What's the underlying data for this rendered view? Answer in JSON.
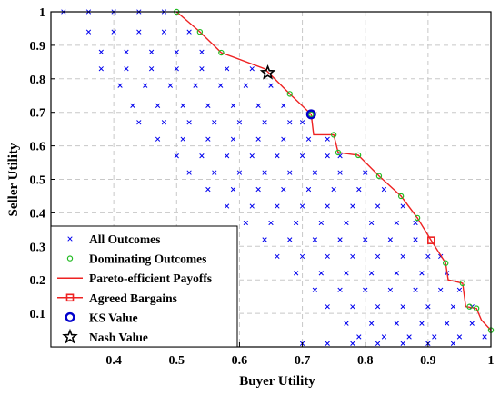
{
  "chart_data": {
    "type": "scatter",
    "xlabel": "Buyer Utility",
    "ylabel": "Seller Utility",
    "xlim": [
      0.3,
      1.0
    ],
    "ylim": [
      0.0,
      1.0
    ],
    "x_ticks": [
      "0.4",
      "0.5",
      "0.6",
      "0.7",
      "0.8",
      "0.9",
      "1"
    ],
    "x_tick_values": [
      0.4,
      0.5,
      0.6,
      0.7,
      0.8,
      0.9,
      1.0
    ],
    "y_ticks": [
      "0.1",
      "0.2",
      "0.3",
      "0.4",
      "0.5",
      "0.6",
      "0.7",
      "0.8",
      "0.9",
      "1"
    ],
    "y_tick_values": [
      0.1,
      0.2,
      0.3,
      0.4,
      0.5,
      0.6,
      0.7,
      0.8,
      0.9,
      1.0
    ],
    "grid": true,
    "legend_position": "bottom-left",
    "colors": {
      "all_outcomes": "#0000ee",
      "dominating": "#22bb22",
      "pareto": "#ee2222",
      "agreed": "#ee2222",
      "ks": "#0000cc",
      "nash": "#000000"
    },
    "series": [
      {
        "name": "All Outcomes",
        "marker": "x",
        "points": [
          [
            0.32,
            1.0
          ],
          [
            0.36,
            1.0
          ],
          [
            0.4,
            1.0
          ],
          [
            0.44,
            1.0
          ],
          [
            0.48,
            1.0
          ],
          [
            0.36,
            0.94
          ],
          [
            0.4,
            0.94
          ],
          [
            0.44,
            0.94
          ],
          [
            0.48,
            0.94
          ],
          [
            0.52,
            0.94
          ],
          [
            0.38,
            0.88
          ],
          [
            0.42,
            0.88
          ],
          [
            0.46,
            0.88
          ],
          [
            0.5,
            0.88
          ],
          [
            0.54,
            0.88
          ],
          [
            0.38,
            0.83
          ],
          [
            0.42,
            0.83
          ],
          [
            0.46,
            0.83
          ],
          [
            0.5,
            0.83
          ],
          [
            0.54,
            0.83
          ],
          [
            0.58,
            0.83
          ],
          [
            0.62,
            0.83
          ],
          [
            0.41,
            0.78
          ],
          [
            0.45,
            0.78
          ],
          [
            0.49,
            0.78
          ],
          [
            0.53,
            0.78
          ],
          [
            0.57,
            0.78
          ],
          [
            0.61,
            0.78
          ],
          [
            0.65,
            0.78
          ],
          [
            0.43,
            0.72
          ],
          [
            0.47,
            0.72
          ],
          [
            0.51,
            0.72
          ],
          [
            0.55,
            0.72
          ],
          [
            0.59,
            0.72
          ],
          [
            0.63,
            0.72
          ],
          [
            0.67,
            0.72
          ],
          [
            0.44,
            0.67
          ],
          [
            0.48,
            0.67
          ],
          [
            0.52,
            0.67
          ],
          [
            0.56,
            0.67
          ],
          [
            0.6,
            0.67
          ],
          [
            0.64,
            0.67
          ],
          [
            0.68,
            0.67
          ],
          [
            0.7,
            0.67
          ],
          [
            0.47,
            0.62
          ],
          [
            0.51,
            0.62
          ],
          [
            0.55,
            0.62
          ],
          [
            0.59,
            0.62
          ],
          [
            0.63,
            0.62
          ],
          [
            0.67,
            0.62
          ],
          [
            0.71,
            0.62
          ],
          [
            0.74,
            0.62
          ],
          [
            0.5,
            0.57
          ],
          [
            0.54,
            0.57
          ],
          [
            0.58,
            0.57
          ],
          [
            0.62,
            0.57
          ],
          [
            0.66,
            0.57
          ],
          [
            0.7,
            0.57
          ],
          [
            0.74,
            0.57
          ],
          [
            0.76,
            0.57
          ],
          [
            0.52,
            0.52
          ],
          [
            0.56,
            0.52
          ],
          [
            0.6,
            0.52
          ],
          [
            0.64,
            0.52
          ],
          [
            0.68,
            0.52
          ],
          [
            0.72,
            0.52
          ],
          [
            0.76,
            0.52
          ],
          [
            0.8,
            0.52
          ],
          [
            0.55,
            0.47
          ],
          [
            0.59,
            0.47
          ],
          [
            0.63,
            0.47
          ],
          [
            0.67,
            0.47
          ],
          [
            0.71,
            0.47
          ],
          [
            0.75,
            0.47
          ],
          [
            0.79,
            0.47
          ],
          [
            0.83,
            0.47
          ],
          [
            0.58,
            0.42
          ],
          [
            0.62,
            0.42
          ],
          [
            0.66,
            0.42
          ],
          [
            0.7,
            0.42
          ],
          [
            0.74,
            0.42
          ],
          [
            0.78,
            0.42
          ],
          [
            0.82,
            0.42
          ],
          [
            0.86,
            0.42
          ],
          [
            0.61,
            0.37
          ],
          [
            0.65,
            0.37
          ],
          [
            0.69,
            0.37
          ],
          [
            0.73,
            0.37
          ],
          [
            0.77,
            0.37
          ],
          [
            0.81,
            0.37
          ],
          [
            0.85,
            0.37
          ],
          [
            0.88,
            0.37
          ],
          [
            0.64,
            0.32
          ],
          [
            0.68,
            0.32
          ],
          [
            0.72,
            0.32
          ],
          [
            0.76,
            0.32
          ],
          [
            0.8,
            0.32
          ],
          [
            0.84,
            0.32
          ],
          [
            0.88,
            0.32
          ],
          [
            0.66,
            0.27
          ],
          [
            0.7,
            0.27
          ],
          [
            0.74,
            0.27
          ],
          [
            0.78,
            0.27
          ],
          [
            0.82,
            0.27
          ],
          [
            0.86,
            0.27
          ],
          [
            0.9,
            0.27
          ],
          [
            0.92,
            0.27
          ],
          [
            0.69,
            0.22
          ],
          [
            0.73,
            0.22
          ],
          [
            0.77,
            0.22
          ],
          [
            0.81,
            0.22
          ],
          [
            0.85,
            0.22
          ],
          [
            0.89,
            0.22
          ],
          [
            0.93,
            0.22
          ],
          [
            0.72,
            0.17
          ],
          [
            0.76,
            0.17
          ],
          [
            0.8,
            0.17
          ],
          [
            0.84,
            0.17
          ],
          [
            0.88,
            0.17
          ],
          [
            0.92,
            0.17
          ],
          [
            0.95,
            0.17
          ],
          [
            0.74,
            0.12
          ],
          [
            0.78,
            0.12
          ],
          [
            0.82,
            0.12
          ],
          [
            0.86,
            0.12
          ],
          [
            0.9,
            0.12
          ],
          [
            0.94,
            0.12
          ],
          [
            0.97,
            0.12
          ],
          [
            0.77,
            0.07
          ],
          [
            0.81,
            0.07
          ],
          [
            0.85,
            0.07
          ],
          [
            0.89,
            0.07
          ],
          [
            0.93,
            0.07
          ],
          [
            0.97,
            0.07
          ],
          [
            0.79,
            0.03
          ],
          [
            0.83,
            0.03
          ],
          [
            0.87,
            0.03
          ],
          [
            0.91,
            0.03
          ],
          [
            0.95,
            0.03
          ],
          [
            0.99,
            0.03
          ],
          [
            0.7,
            0.01
          ],
          [
            0.74,
            0.01
          ],
          [
            0.78,
            0.01
          ],
          [
            0.82,
            0.01
          ],
          [
            0.86,
            0.01
          ],
          [
            0.9,
            0.01
          ],
          [
            0.94,
            0.01
          ]
        ]
      },
      {
        "name": "Dominating Outcomes",
        "marker": "circle-open",
        "points": [
          [
            0.5,
            1.0
          ],
          [
            0.537,
            0.94
          ],
          [
            0.571,
            0.878
          ],
          [
            0.68,
            0.755
          ],
          [
            0.714,
            0.694
          ],
          [
            0.75,
            0.633
          ],
          [
            0.757,
            0.58
          ],
          [
            0.789,
            0.572
          ],
          [
            0.822,
            0.51
          ],
          [
            0.857,
            0.45
          ],
          [
            0.883,
            0.385
          ],
          [
            0.928,
            0.25
          ],
          [
            0.955,
            0.19
          ],
          [
            0.966,
            0.12
          ],
          [
            0.977,
            0.115
          ],
          [
            1.0,
            0.05
          ]
        ]
      },
      {
        "name": "Pareto-efficient Payoffs",
        "marker": "line",
        "points": [
          [
            0.5,
            1.0
          ],
          [
            0.537,
            0.94
          ],
          [
            0.571,
            0.878
          ],
          [
            0.64,
            0.83
          ],
          [
            0.68,
            0.755
          ],
          [
            0.714,
            0.694
          ],
          [
            0.718,
            0.633
          ],
          [
            0.75,
            0.633
          ],
          [
            0.757,
            0.58
          ],
          [
            0.789,
            0.572
          ],
          [
            0.822,
            0.51
          ],
          [
            0.857,
            0.45
          ],
          [
            0.883,
            0.385
          ],
          [
            0.905,
            0.318
          ],
          [
            0.928,
            0.25
          ],
          [
            0.932,
            0.2
          ],
          [
            0.955,
            0.19
          ],
          [
            0.96,
            0.12
          ],
          [
            0.977,
            0.115
          ],
          [
            0.985,
            0.08
          ],
          [
            1.0,
            0.05
          ]
        ]
      },
      {
        "name": "Agreed Bargains",
        "marker": "square-open",
        "points": [
          [
            0.905,
            0.318
          ]
        ]
      },
      {
        "name": "KS Value",
        "marker": "circle-bold",
        "points": [
          [
            0.714,
            0.694
          ]
        ]
      },
      {
        "name": "Nash Value",
        "marker": "star",
        "points": [
          [
            0.645,
            0.818
          ]
        ]
      }
    ]
  }
}
